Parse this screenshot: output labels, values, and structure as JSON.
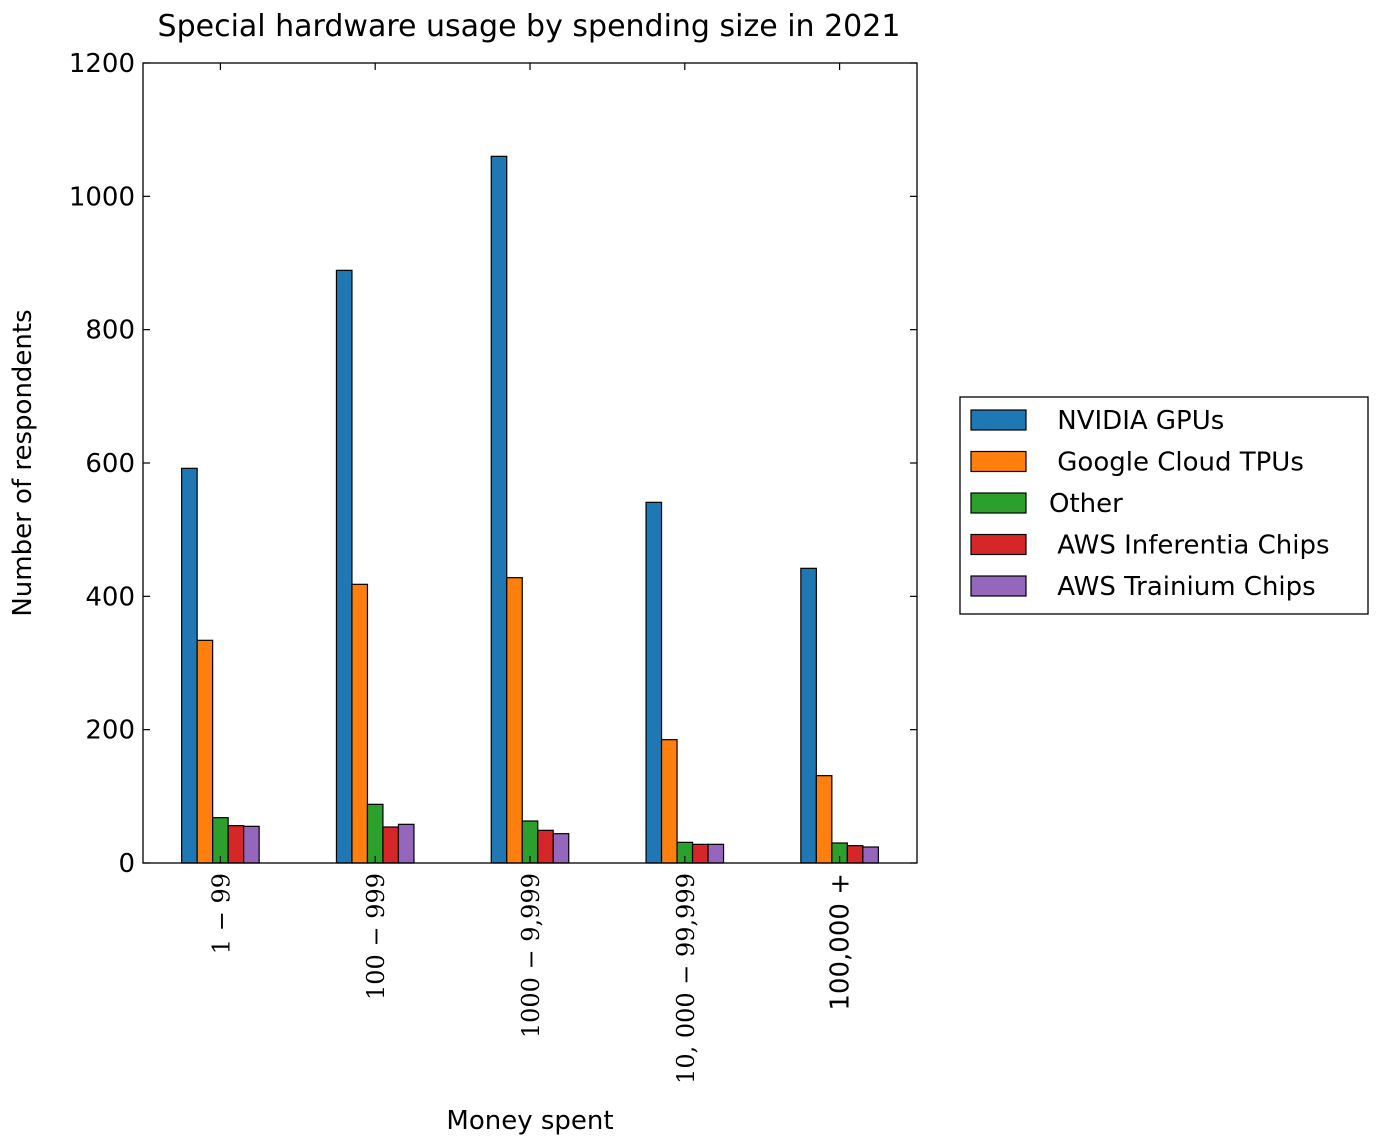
{
  "chart_data": {
    "type": "bar",
    "title": "Special hardware usage by spending size in 2021",
    "xlabel": "Money spent",
    "ylabel": "Number of respondents",
    "categories": [
      "$1-$99",
      "$100-$999",
      "$1000-$9,999",
      "$10,000-$99,999",
      "$100,000 +"
    ],
    "category_tick_labels": [
      "1 − 99",
      "100 − 999",
      "1000 − 9,999",
      "10, 000 − 99,999",
      "100,000 +"
    ],
    "ylim": [
      0,
      1200
    ],
    "yticks": [
      0,
      200,
      400,
      600,
      800,
      1000,
      1200
    ],
    "ytick_labels": [
      "0",
      "200",
      "400",
      "600",
      "800",
      "1000",
      "1200"
    ],
    "grid": false,
    "legend_position": "center-right (outside plot)",
    "series": [
      {
        "name": " NVIDIA GPUs",
        "color": "#1f77b4",
        "values": [
          592,
          889,
          1060,
          541,
          442
        ]
      },
      {
        "name": " Google Cloud TPUs",
        "color": "#ff7f0e",
        "values": [
          334,
          418,
          428,
          185,
          131
        ]
      },
      {
        "name": "Other",
        "color": "#2ca02c",
        "values": [
          68,
          88,
          63,
          31,
          30
        ]
      },
      {
        "name": " AWS Inferentia Chips",
        "color": "#d62728",
        "values": [
          56,
          54,
          49,
          28,
          26
        ]
      },
      {
        "name": " AWS Trainium Chips",
        "color": "#9467bd",
        "values": [
          55,
          58,
          44,
          28,
          24
        ]
      }
    ]
  }
}
